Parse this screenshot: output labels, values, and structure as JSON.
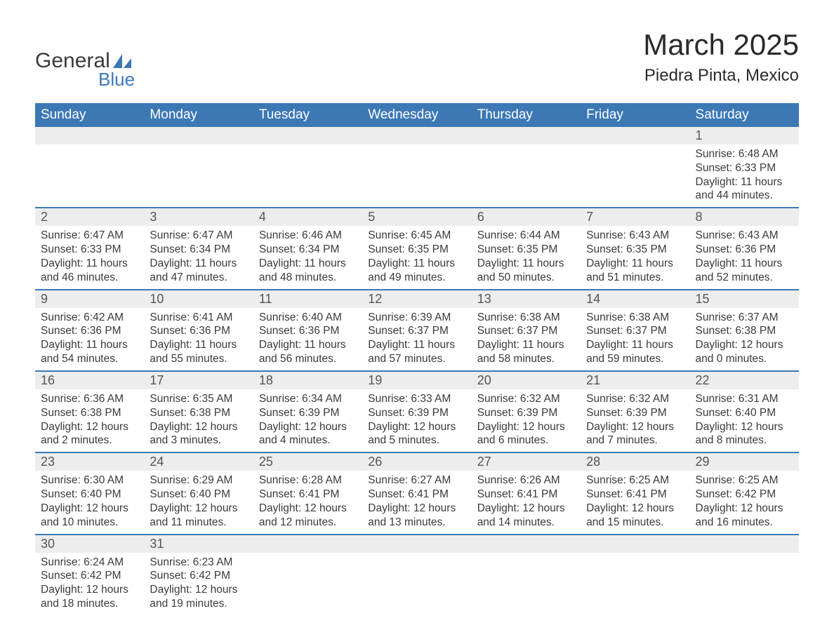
{
  "brand": {
    "word1": "General",
    "word2": "Blue",
    "sail_color": "#3c78b4",
    "text_color": "#3a3a3a"
  },
  "header": {
    "title": "March 2025",
    "location": "Piedra Pinta, Mexico"
  },
  "style": {
    "header_bg": "#3c78b4",
    "header_text": "#ffffff",
    "daynum_bg": "#ededed",
    "daynum_text": "#555555",
    "row_border": "#3c78b4",
    "body_text": "#3a3a3a",
    "page_bg": "#ffffff",
    "title_fontsize": 42,
    "location_fontsize": 24,
    "th_fontsize": 19,
    "daynum_fontsize": 18,
    "body_fontsize": 15.5
  },
  "weekdays": [
    "Sunday",
    "Monday",
    "Tuesday",
    "Wednesday",
    "Thursday",
    "Friday",
    "Saturday"
  ],
  "labels": {
    "sunrise": "Sunrise:",
    "sunset": "Sunset:",
    "daylight": "Daylight:"
  },
  "weeks": [
    [
      {
        "empty": true
      },
      {
        "empty": true
      },
      {
        "empty": true
      },
      {
        "empty": true
      },
      {
        "empty": true
      },
      {
        "empty": true
      },
      {
        "day": "1",
        "sunrise": "6:48 AM",
        "sunset": "6:33 PM",
        "daylight": "11 hours and 44 minutes."
      }
    ],
    [
      {
        "day": "2",
        "sunrise": "6:47 AM",
        "sunset": "6:33 PM",
        "daylight": "11 hours and 46 minutes."
      },
      {
        "day": "3",
        "sunrise": "6:47 AM",
        "sunset": "6:34 PM",
        "daylight": "11 hours and 47 minutes."
      },
      {
        "day": "4",
        "sunrise": "6:46 AM",
        "sunset": "6:34 PM",
        "daylight": "11 hours and 48 minutes."
      },
      {
        "day": "5",
        "sunrise": "6:45 AM",
        "sunset": "6:35 PM",
        "daylight": "11 hours and 49 minutes."
      },
      {
        "day": "6",
        "sunrise": "6:44 AM",
        "sunset": "6:35 PM",
        "daylight": "11 hours and 50 minutes."
      },
      {
        "day": "7",
        "sunrise": "6:43 AM",
        "sunset": "6:35 PM",
        "daylight": "11 hours and 51 minutes."
      },
      {
        "day": "8",
        "sunrise": "6:43 AM",
        "sunset": "6:36 PM",
        "daylight": "11 hours and 52 minutes."
      }
    ],
    [
      {
        "day": "9",
        "sunrise": "6:42 AM",
        "sunset": "6:36 PM",
        "daylight": "11 hours and 54 minutes."
      },
      {
        "day": "10",
        "sunrise": "6:41 AM",
        "sunset": "6:36 PM",
        "daylight": "11 hours and 55 minutes."
      },
      {
        "day": "11",
        "sunrise": "6:40 AM",
        "sunset": "6:36 PM",
        "daylight": "11 hours and 56 minutes."
      },
      {
        "day": "12",
        "sunrise": "6:39 AM",
        "sunset": "6:37 PM",
        "daylight": "11 hours and 57 minutes."
      },
      {
        "day": "13",
        "sunrise": "6:38 AM",
        "sunset": "6:37 PM",
        "daylight": "11 hours and 58 minutes."
      },
      {
        "day": "14",
        "sunrise": "6:38 AM",
        "sunset": "6:37 PM",
        "daylight": "11 hours and 59 minutes."
      },
      {
        "day": "15",
        "sunrise": "6:37 AM",
        "sunset": "6:38 PM",
        "daylight": "12 hours and 0 minutes."
      }
    ],
    [
      {
        "day": "16",
        "sunrise": "6:36 AM",
        "sunset": "6:38 PM",
        "daylight": "12 hours and 2 minutes."
      },
      {
        "day": "17",
        "sunrise": "6:35 AM",
        "sunset": "6:38 PM",
        "daylight": "12 hours and 3 minutes."
      },
      {
        "day": "18",
        "sunrise": "6:34 AM",
        "sunset": "6:39 PM",
        "daylight": "12 hours and 4 minutes."
      },
      {
        "day": "19",
        "sunrise": "6:33 AM",
        "sunset": "6:39 PM",
        "daylight": "12 hours and 5 minutes."
      },
      {
        "day": "20",
        "sunrise": "6:32 AM",
        "sunset": "6:39 PM",
        "daylight": "12 hours and 6 minutes."
      },
      {
        "day": "21",
        "sunrise": "6:32 AM",
        "sunset": "6:39 PM",
        "daylight": "12 hours and 7 minutes."
      },
      {
        "day": "22",
        "sunrise": "6:31 AM",
        "sunset": "6:40 PM",
        "daylight": "12 hours and 8 minutes."
      }
    ],
    [
      {
        "day": "23",
        "sunrise": "6:30 AM",
        "sunset": "6:40 PM",
        "daylight": "12 hours and 10 minutes."
      },
      {
        "day": "24",
        "sunrise": "6:29 AM",
        "sunset": "6:40 PM",
        "daylight": "12 hours and 11 minutes."
      },
      {
        "day": "25",
        "sunrise": "6:28 AM",
        "sunset": "6:41 PM",
        "daylight": "12 hours and 12 minutes."
      },
      {
        "day": "26",
        "sunrise": "6:27 AM",
        "sunset": "6:41 PM",
        "daylight": "12 hours and 13 minutes."
      },
      {
        "day": "27",
        "sunrise": "6:26 AM",
        "sunset": "6:41 PM",
        "daylight": "12 hours and 14 minutes."
      },
      {
        "day": "28",
        "sunrise": "6:25 AM",
        "sunset": "6:41 PM",
        "daylight": "12 hours and 15 minutes."
      },
      {
        "day": "29",
        "sunrise": "6:25 AM",
        "sunset": "6:42 PM",
        "daylight": "12 hours and 16 minutes."
      }
    ],
    [
      {
        "day": "30",
        "sunrise": "6:24 AM",
        "sunset": "6:42 PM",
        "daylight": "12 hours and 18 minutes."
      },
      {
        "day": "31",
        "sunrise": "6:23 AM",
        "sunset": "6:42 PM",
        "daylight": "12 hours and 19 minutes."
      },
      {
        "empty": true
      },
      {
        "empty": true
      },
      {
        "empty": true
      },
      {
        "empty": true
      },
      {
        "empty": true
      }
    ]
  ]
}
